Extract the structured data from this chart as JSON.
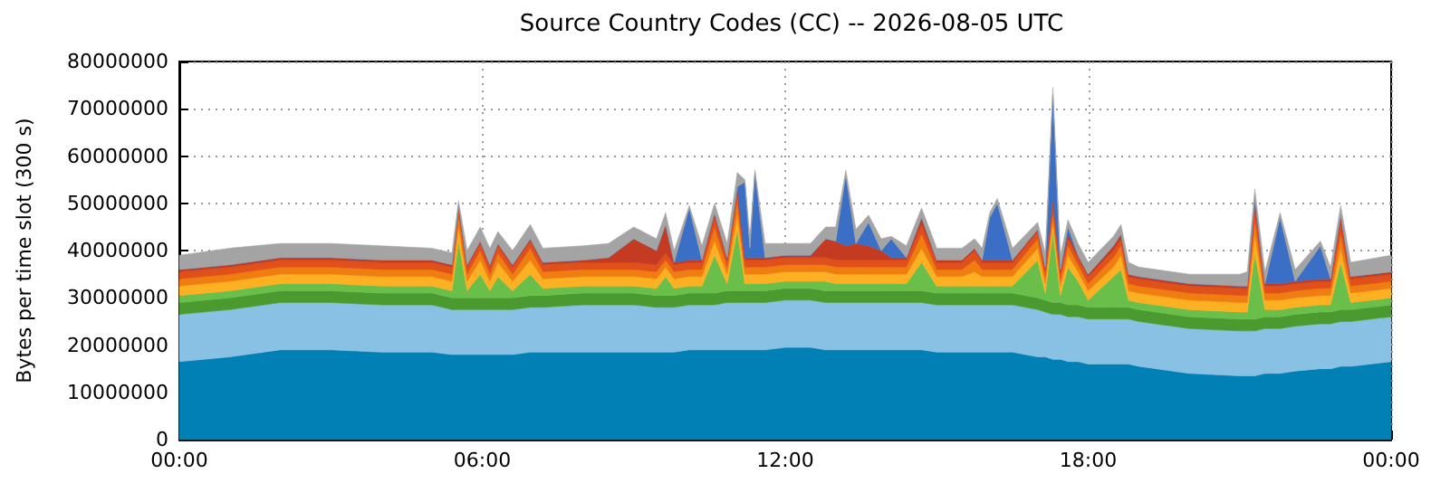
{
  "chart_data": {
    "type": "area",
    "stacked": true,
    "title": "Source Country Codes (CC) -- 2026-08-05 UTC",
    "ylabel": "Bytes per time slot (300 s)",
    "grid": true,
    "xlim": [
      0,
      24
    ],
    "xticks": [
      {
        "value": 0,
        "label": "00:00"
      },
      {
        "value": 6,
        "label": "06:00"
      },
      {
        "value": 12,
        "label": "12:00"
      },
      {
        "value": 18,
        "label": "18:00"
      },
      {
        "value": 24,
        "label": "00:00"
      }
    ],
    "ylim": [
      0,
      80000000
    ],
    "yticks": [
      0,
      10000000,
      20000000,
      30000000,
      40000000,
      50000000,
      60000000,
      70000000,
      80000000
    ],
    "x": [
      0,
      1,
      2,
      3,
      4,
      5,
      5.4,
      5.53,
      5.7,
      5.96,
      6.15,
      6.31,
      6.6,
      6.95,
      7.2,
      8,
      8.5,
      9,
      9.45,
      9.63,
      9.8,
      10.1,
      10.35,
      10.6,
      10.85,
      11.05,
      11.2,
      11.3,
      11.4,
      11.6,
      12,
      12.5,
      12.8,
      13,
      13.2,
      13.4,
      13.65,
      13.9,
      14.1,
      14.4,
      14.7,
      15,
      15.5,
      15.75,
      15.9,
      16.05,
      16.2,
      16.5,
      17,
      17.15,
      17.3,
      17.45,
      17.6,
      17.8,
      18,
      18.5,
      18.65,
      18.8,
      19,
      20,
      21,
      21.15,
      21.3,
      21.5,
      21.8,
      22.1,
      22.6,
      22.8,
      23,
      23.2,
      24
    ],
    "series": [
      {
        "color": "#0080b4",
        "values": [
          16500000.0,
          17500000.0,
          19000000.0,
          19000000.0,
          18500000.0,
          18500000.0,
          18000000.0,
          18000000.0,
          18000000.0,
          18000000.0,
          18000000.0,
          18000000.0,
          18000000.0,
          18500000.0,
          18500000.0,
          18500000.0,
          18500000.0,
          18500000.0,
          18500000.0,
          18500000.0,
          18500000.0,
          19000000.0,
          19000000.0,
          19000000.0,
          19000000.0,
          19000000.0,
          19000000.0,
          19000000.0,
          19000000.0,
          19000000.0,
          19500000.0,
          19500000.0,
          19000000.0,
          19000000.0,
          19000000.0,
          19000000.0,
          19000000.0,
          19000000.0,
          19000000.0,
          19000000.0,
          19000000.0,
          18500000.0,
          18500000.0,
          18500000.0,
          18500000.0,
          18500000.0,
          18500000.0,
          18500000.0,
          17500000.0,
          17500000.0,
          17000000.0,
          17000000.0,
          16500000.0,
          16500000.0,
          16000000.0,
          16000000.0,
          16000000.0,
          16000000.0,
          15500000.0,
          14000000.0,
          13500000.0,
          13500000.0,
          13500000.0,
          14000000.0,
          14000000.0,
          14500000.0,
          15000000.0,
          15000000.0,
          15500000.0,
          15500000.0,
          16500000.0
        ]
      },
      {
        "color": "#88c1e3",
        "values": [
          10000000.0,
          10000000.0,
          10000000.0,
          10000000.0,
          10000000.0,
          10000000.0,
          9500000.0,
          9500000.0,
          9500000.0,
          9500000.0,
          9500000.0,
          9500000.0,
          9500000.0,
          9500000.0,
          9500000.0,
          10000000.0,
          10000000.0,
          10000000.0,
          9500000.0,
          9500000.0,
          9500000.0,
          9500000.0,
          9500000.0,
          9500000.0,
          10000000.0,
          10000000.0,
          10000000.0,
          10000000.0,
          10000000.0,
          10000000.0,
          10000000.0,
          10000000.0,
          10000000.0,
          10000000.0,
          10000000.0,
          10000000.0,
          10000000.0,
          10000000.0,
          10000000.0,
          10000000.0,
          10000000.0,
          10000000.0,
          10000000.0,
          10000000.0,
          10000000.0,
          10000000.0,
          10000000.0,
          10000000.0,
          10000000.0,
          9500000.0,
          9500000.0,
          9500000.0,
          9500000.0,
          9500000.0,
          9500000.0,
          9500000.0,
          9500000.0,
          9500000.0,
          9500000.0,
          9500000.0,
          9500000.0,
          9500000.0,
          9500000.0,
          9500000.0,
          9500000.0,
          9500000.0,
          9500000.0,
          9500000.0,
          9500000.0,
          9500000.0,
          9500000.0
        ]
      },
      {
        "color": "#4a9a30",
        "values": [
          2500000.0,
          2500000.0,
          2500000.0,
          2500000.0,
          2500000.0,
          2500000.0,
          2500000.0,
          2500000.0,
          2500000.0,
          2500000.0,
          2500000.0,
          2500000.0,
          2500000.0,
          2500000.0,
          2500000.0,
          2500000.0,
          2500000.0,
          2500000.0,
          2500000.0,
          2500000.0,
          2500000.0,
          2500000.0,
          2500000.0,
          2500000.0,
          2500000.0,
          2500000.0,
          2500000.0,
          2500000.0,
          2500000.0,
          2500000.0,
          2500000.0,
          2500000.0,
          2500000.0,
          2500000.0,
          2500000.0,
          2500000.0,
          2500000.0,
          2500000.0,
          2500000.0,
          2500000.0,
          2500000.0,
          2500000.0,
          2500000.0,
          2500000.0,
          2500000.0,
          2500000.0,
          2500000.0,
          2500000.0,
          2500000.0,
          2500000.0,
          2500000.0,
          2500000.0,
          2500000.0,
          2500000.0,
          2500000.0,
          2500000.0,
          2500000.0,
          2500000.0,
          2500000.0,
          2500000.0,
          2500000.0,
          2500000.0,
          2500000.0,
          2500000.0,
          2500000.0,
          2500000.0,
          2500000.0,
          2500000.0,
          2500000.0,
          2500000.0,
          2500000.0
        ]
      },
      {
        "color": "#6abf4b",
        "values": [
          1500000.0,
          1500000.0,
          1500000.0,
          1500000.0,
          1500000.0,
          1500000.0,
          1500000.0,
          12000000.0,
          1500000.0,
          5000000.0,
          1500000.0,
          4500000.0,
          1500000.0,
          4500000.0,
          1500000.0,
          1500000.0,
          1500000.0,
          1500000.0,
          1500000.0,
          4000000.0,
          1500000.0,
          1500000.0,
          1500000.0,
          8000000.0,
          1500000.0,
          13000000.0,
          1500000.0,
          1500000.0,
          1500000.0,
          1500000.0,
          1500000.0,
          1500000.0,
          2000000.0,
          1500000.0,
          1500000.0,
          1500000.0,
          1500000.0,
          1500000.0,
          1500000.0,
          1500000.0,
          6000000.0,
          1500000.0,
          1500000.0,
          1500000.0,
          1500000.0,
          1500000.0,
          1500000.0,
          1500000.0,
          8000000.0,
          1500000.0,
          15000000.0,
          1500000.0,
          8000000.0,
          5000000.0,
          1500000.0,
          6500000.0,
          8000000.0,
          1500000.0,
          1500000.0,
          1500000.0,
          1500000.0,
          1500000.0,
          14000000.0,
          1500000.0,
          1500000.0,
          1500000.0,
          1500000.0,
          1500000.0,
          10000000.0,
          1500000.0,
          1500000.0
        ]
      },
      {
        "color": "#fdb022",
        "values": [
          2000000.0,
          2000000.0,
          2000000.0,
          2000000.0,
          2000000.0,
          2000000.0,
          2000000.0,
          3000000.0,
          2000000.0,
          3000000.0,
          2000000.0,
          3000000.0,
          2000000.0,
          3000000.0,
          2000000.0,
          2000000.0,
          2000000.0,
          2000000.0,
          2000000.0,
          2000000.0,
          2000000.0,
          2000000.0,
          2000000.0,
          3000000.0,
          2000000.0,
          3000000.0,
          2000000.0,
          2000000.0,
          2000000.0,
          2000000.0,
          2000000.0,
          2000000.0,
          2000000.0,
          2000000.0,
          2000000.0,
          2000000.0,
          2000000.0,
          2000000.0,
          2000000.0,
          2000000.0,
          3000000.0,
          2000000.0,
          2000000.0,
          3000000.0,
          2000000.0,
          2000000.0,
          2000000.0,
          2000000.0,
          2500000.0,
          2000000.0,
          2000000.0,
          2000000.0,
          2500000.0,
          2000000.0,
          2000000.0,
          2000000.0,
          3000000.0,
          2000000.0,
          2000000.0,
          2000000.0,
          2000000.0,
          2000000.0,
          4000000.0,
          2000000.0,
          2000000.0,
          2000000.0,
          2000000.0,
          2000000.0,
          3000000.0,
          2000000.0,
          2000000.0
        ]
      },
      {
        "color": "#f07d10",
        "values": [
          1500000.0,
          1500000.0,
          1500000.0,
          1500000.0,
          1500000.0,
          1500000.0,
          1500000.0,
          2500000.0,
          1500000.0,
          2000000.0,
          1500000.0,
          2000000.0,
          1500000.0,
          2500000.0,
          1500000.0,
          1500000.0,
          1500000.0,
          1500000.0,
          1500000.0,
          1500000.0,
          1500000.0,
          1500000.0,
          1500000.0,
          3000000.0,
          1500000.0,
          3000000.0,
          1500000.0,
          1500000.0,
          1500000.0,
          1500000.0,
          1500000.0,
          1500000.0,
          1500000.0,
          1500000.0,
          1500000.0,
          1500000.0,
          1500000.0,
          1500000.0,
          1500000.0,
          1500000.0,
          3000000.0,
          1500000.0,
          1500000.0,
          2500000.0,
          1500000.0,
          1500000.0,
          1500000.0,
          1500000.0,
          2000000.0,
          1500000.0,
          2000000.0,
          1500000.0,
          2000000.0,
          1500000.0,
          1500000.0,
          2000000.0,
          2000000.0,
          1500000.0,
          1500000.0,
          1500000.0,
          1500000.0,
          1500000.0,
          3000000.0,
          1500000.0,
          1500000.0,
          1500000.0,
          1500000.0,
          1500000.0,
          3000000.0,
          1500000.0,
          1500000.0
        ]
      },
      {
        "color": "#e0501a",
        "values": [
          1500000.0,
          1500000.0,
          1500000.0,
          1500000.0,
          1500000.0,
          1500000.0,
          1500000.0,
          1500000.0,
          1500000.0,
          1500000.0,
          1500000.0,
          1500000.0,
          1500000.0,
          1500000.0,
          1500000.0,
          1500000.0,
          1500000.0,
          1500000.0,
          1500000.0,
          1500000.0,
          1500000.0,
          1500000.0,
          1500000.0,
          2000000.0,
          1500000.0,
          2000000.0,
          1500000.0,
          1500000.0,
          1500000.0,
          1500000.0,
          1500000.0,
          1500000.0,
          1500000.0,
          1500000.0,
          1500000.0,
          1500000.0,
          1500000.0,
          1500000.0,
          1500000.0,
          1500000.0,
          2000000.0,
          1500000.0,
          1500000.0,
          2000000.0,
          1500000.0,
          1500000.0,
          1500000.0,
          1500000.0,
          1500000.0,
          1500000.0,
          2000000.0,
          1500000.0,
          1500000.0,
          1500000.0,
          1500000.0,
          1500000.0,
          1500000.0,
          1500000.0,
          1500000.0,
          1500000.0,
          1500000.0,
          1500000.0,
          2500000.0,
          1500000.0,
          1500000.0,
          1500000.0,
          1500000.0,
          1500000.0,
          2500000.0,
          1500000.0,
          1500000.0
        ]
      },
      {
        "color": "#c53b22",
        "values": [
          500000.0,
          500000.0,
          500000.0,
          500000.0,
          500000.0,
          500000.0,
          500000.0,
          500000.0,
          500000.0,
          500000.0,
          500000.0,
          500000.0,
          500000.0,
          500000.0,
          500000.0,
          500000.0,
          1000000.0,
          5000000.0,
          3000000.0,
          6000000.0,
          500000.0,
          500000.0,
          500000.0,
          1000000.0,
          500000.0,
          1000000.0,
          500000.0,
          500000.0,
          500000.0,
          500000.0,
          500000.0,
          500000.0,
          4000000.0,
          4000000.0,
          3000000.0,
          3500000.0,
          3000000.0,
          2000000.0,
          500000.0,
          500000.0,
          1500000.0,
          500000.0,
          500000.0,
          500000.0,
          500000.0,
          500000.0,
          500000.0,
          500000.0,
          500000.0,
          500000.0,
          1000000.0,
          500000.0,
          1000000.0,
          500000.0,
          500000.0,
          1000000.0,
          1000000.0,
          500000.0,
          500000.0,
          500000.0,
          500000.0,
          500000.0,
          2000000.0,
          500000.0,
          500000.0,
          500000.0,
          500000.0,
          500000.0,
          1500000.0,
          500000.0,
          500000.0
        ]
      },
      {
        "color": "#3a6fc5",
        "values": [
          0,
          0,
          0,
          0,
          0,
          0,
          0,
          0,
          0,
          0,
          0,
          0,
          0,
          0,
          0,
          0,
          0,
          0,
          0,
          0,
          0,
          11000000.0,
          0,
          0,
          0,
          0,
          16000000.0,
          2000000.0,
          18000000.0,
          0,
          0,
          0,
          0,
          0,
          15000000.0,
          0,
          5000000.0,
          0,
          4000000.0,
          0,
          0,
          0,
          0,
          0,
          0,
          9000000.0,
          12000000.0,
          0,
          0,
          0,
          22000000.0,
          0,
          1500000.0,
          0,
          0,
          0,
          0,
          0,
          0,
          0,
          0,
          0,
          0,
          0,
          14000000.0,
          0,
          7000000.0,
          0,
          0,
          0,
          0
        ]
      },
      {
        "color": "#a4a4a4",
        "values": [
          3000000.0,
          3500000.0,
          3000000.0,
          3000000.0,
          3000000.0,
          2500000.0,
          2500000.0,
          1000000.0,
          3000000.0,
          3000000.0,
          3500000.0,
          2500000.0,
          3000000.0,
          3000000.0,
          3000000.0,
          3000000.0,
          3000000.0,
          2500000.0,
          2500000.0,
          2500000.0,
          2500000.0,
          500000.0,
          3000000.0,
          2000000.0,
          3000000.0,
          3000000.0,
          500000.0,
          2500000.0,
          500000.0,
          3000000.0,
          2500000.0,
          2500000.0,
          2500000.0,
          3000000.0,
          1000000.0,
          3000000.0,
          1500000.0,
          2500000.0,
          500000.0,
          2500000.0,
          2000000.0,
          2500000.0,
          2500000.0,
          2000000.0,
          2500000.0,
          1000000.0,
          1000000.0,
          2500000.0,
          1500000.0,
          3000000.0,
          1500000.0,
          3000000.0,
          1500000.0,
          2500000.0,
          2500000.0,
          2000000.0,
          2000000.0,
          2500000.0,
          2000000.0,
          2000000.0,
          2500000.0,
          3000000.0,
          2000000.0,
          2500000.0,
          1000000.0,
          2500000.0,
          1000000.0,
          2500000.0,
          2000000.0,
          3000000.0,
          3500000.0
        ]
      }
    ]
  }
}
